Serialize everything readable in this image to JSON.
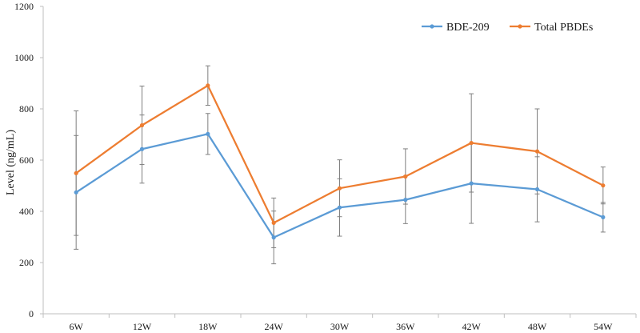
{
  "chart_data": {
    "type": "line",
    "title": "",
    "xlabel": "",
    "ylabel": "Level (ng/mL)",
    "categories": [
      "6W",
      "12W",
      "18W",
      "24W",
      "30W",
      "36W",
      "42W",
      "48W",
      "54W"
    ],
    "ylim": [
      0,
      1200
    ],
    "yticks": [
      0,
      200,
      400,
      600,
      800,
      1000,
      1200
    ],
    "grid": false,
    "legend_position": "top-right",
    "series": [
      {
        "name": "BDE-209",
        "color": "#5B9BD5",
        "values": [
          474,
          643,
          702,
          298,
          415,
          445,
          509,
          486,
          377
        ],
        "error": [
          222,
          133,
          80,
          103,
          112,
          93,
          156,
          127,
          58
        ]
      },
      {
        "name": "Total PBDEs",
        "color": "#ED7D31",
        "values": [
          549,
          736,
          891,
          355,
          490,
          536,
          667,
          634,
          501
        ],
        "error": [
          243,
          153,
          77,
          97,
          111,
          108,
          192,
          166,
          72
        ]
      }
    ]
  }
}
